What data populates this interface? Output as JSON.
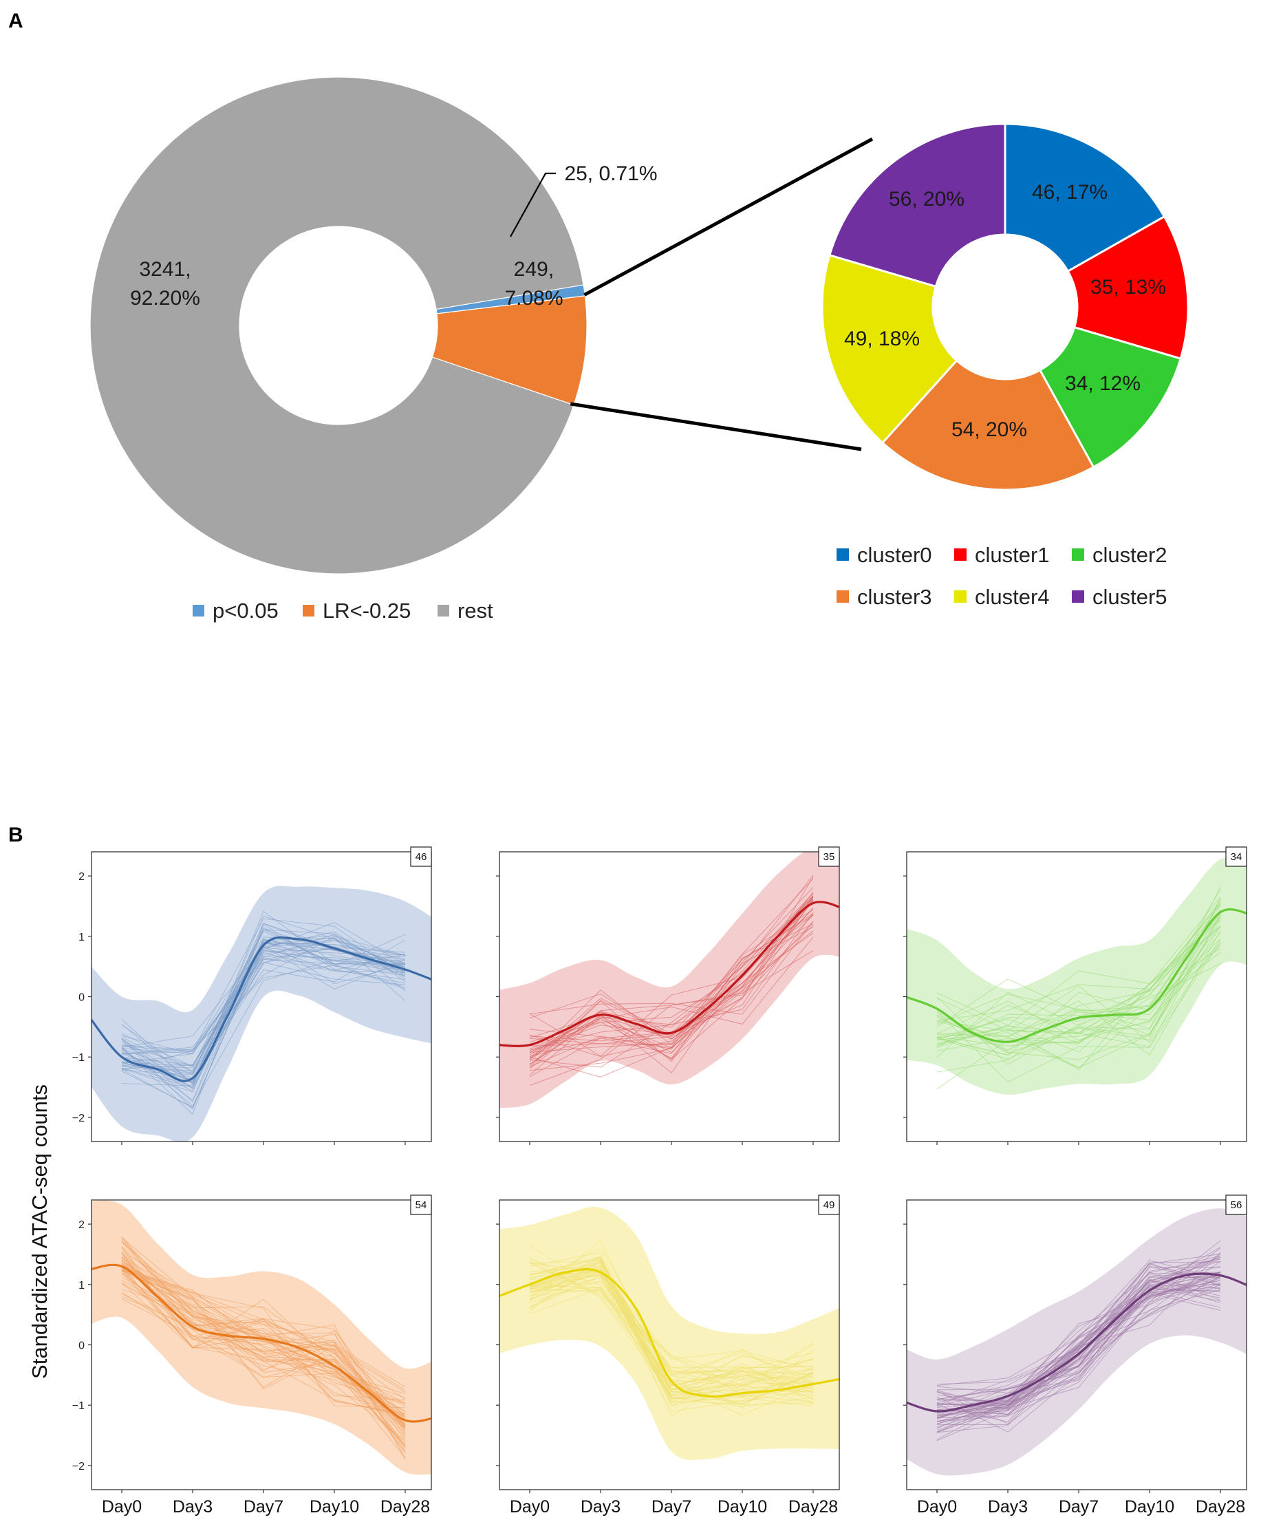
{
  "figure": {
    "panel_a_label": "A",
    "panel_b_label": "B"
  },
  "chart_data": [
    {
      "type": "pie",
      "variant": "donut",
      "title": "",
      "slices": [
        {
          "name": "p<0.05",
          "value": 25,
          "percent": 0.71,
          "label": "25, 0.71%",
          "color": "#5b9bd5"
        },
        {
          "name": "LR<-0.25",
          "value": 249,
          "percent": 7.08,
          "label_line1": "249,",
          "label_line2": "7.08%",
          "color": "#ed7d31"
        },
        {
          "name": "rest",
          "value": 3241,
          "percent": 92.2,
          "label_line1": "3241,",
          "label_line2": "92.20%",
          "color": "#a5a5a5"
        }
      ],
      "legend": [
        "p<0.05",
        "LR<-0.25",
        "rest"
      ],
      "legend_placement": "bottom"
    },
    {
      "type": "pie",
      "variant": "donut",
      "title": "",
      "slices": [
        {
          "name": "cluster0",
          "value": 46,
          "percent": 17,
          "label": "46, 17%",
          "color": "#0070c0"
        },
        {
          "name": "cluster1",
          "value": 35,
          "percent": 13,
          "label": "35, 13%",
          "color": "#ff0000"
        },
        {
          "name": "cluster2",
          "value": 34,
          "percent": 12,
          "label": "34, 12%",
          "color": "#33cc33"
        },
        {
          "name": "cluster3",
          "value": 54,
          "percent": 20,
          "label": "54, 20%",
          "color": "#ed7d31"
        },
        {
          "name": "cluster4",
          "value": 49,
          "percent": 18,
          "label": "49, 18%",
          "color": "#e6e600"
        },
        {
          "name": "cluster5",
          "value": 56,
          "percent": 20,
          "label": "56, 20%",
          "color": "#7030a0"
        }
      ],
      "legend": [
        "cluster0",
        "cluster1",
        "cluster2",
        "cluster3",
        "cluster4",
        "cluster5"
      ],
      "legend_placement": "bottom"
    },
    {
      "type": "line",
      "title": "",
      "ylabel": "Standardized ATAC-seq counts",
      "categories": [
        "Day0",
        "Day3",
        "Day7",
        "Day10",
        "Day28"
      ],
      "yticks": [
        "2",
        "1",
        "0",
        "−1",
        "−2"
      ],
      "ylim": [
        -2.4,
        2.4
      ],
      "panels": [
        {
          "cluster": "cluster0",
          "count": "46",
          "color": "#3a6aa8",
          "fill": "#c5d4e8",
          "thin": "#7f9ec9",
          "mean": [
            -1.0,
            -1.35,
            0.85,
            0.75,
            0.45
          ],
          "band_width": 1.0,
          "spread": 0.4,
          "trend": [
            [
              -0.45,
              -0.35
            ],
            [
              0,
              -1.0
            ],
            [
              0.5,
              -1.2
            ],
            [
              1,
              -1.35
            ],
            [
              1.5,
              -0.3
            ],
            [
              2,
              0.85
            ],
            [
              2.5,
              0.95
            ],
            [
              3,
              0.8
            ],
            [
              3.5,
              0.62
            ],
            [
              4,
              0.45
            ],
            [
              4.45,
              0.25
            ]
          ]
        },
        {
          "cluster": "cluster1",
          "count": "35",
          "color": "#c0181c",
          "fill": "#f2c4c5",
          "thin": "#d96060",
          "mean": [
            -0.95,
            -0.5,
            -0.6,
            0.3,
            1.5
          ],
          "band_width": 0.9,
          "spread": 0.45,
          "trend": [
            [
              -0.45,
              -0.8
            ],
            [
              0,
              -0.8
            ],
            [
              0.5,
              -0.55
            ],
            [
              1,
              -0.3
            ],
            [
              1.5,
              -0.45
            ],
            [
              2,
              -0.6
            ],
            [
              2.5,
              -0.2
            ],
            [
              3,
              0.35
            ],
            [
              3.5,
              1.0
            ],
            [
              4,
              1.55
            ],
            [
              4.45,
              1.45
            ]
          ]
        },
        {
          "cluster": "cluster2",
          "count": "34",
          "color": "#66cc33",
          "fill": "#d4f0c4",
          "thin": "#99dd77",
          "mean": [
            -0.6,
            -0.55,
            -0.45,
            -0.3,
            1.3
          ],
          "band_width": 1.0,
          "spread": 0.55,
          "trend": [
            [
              -0.45,
              0.0
            ],
            [
              0,
              -0.2
            ],
            [
              0.5,
              -0.6
            ],
            [
              1,
              -0.75
            ],
            [
              1.5,
              -0.55
            ],
            [
              2,
              -0.35
            ],
            [
              2.5,
              -0.3
            ],
            [
              3,
              -0.2
            ],
            [
              3.5,
              0.6
            ],
            [
              4,
              1.4
            ],
            [
              4.45,
              1.35
            ]
          ]
        },
        {
          "cluster": "cluster3",
          "count": "54",
          "color": "#e8781c",
          "fill": "#fad4b4",
          "thin": "#f0a060",
          "mean": [
            1.3,
            0.4,
            0.0,
            -0.3,
            -1.35
          ],
          "band_width": 1.0,
          "spread": 0.45,
          "trend": [
            [
              -0.45,
              1.25
            ],
            [
              0,
              1.3
            ],
            [
              0.5,
              0.8
            ],
            [
              1,
              0.3
            ],
            [
              1.5,
              0.15
            ],
            [
              2,
              0.1
            ],
            [
              2.5,
              -0.05
            ],
            [
              3,
              -0.35
            ],
            [
              3.5,
              -0.8
            ],
            [
              4,
              -1.25
            ],
            [
              4.45,
              -1.2
            ]
          ]
        },
        {
          "cluster": "cluster4",
          "count": "49",
          "color": "#e8d400",
          "fill": "#f9f0b0",
          "thin": "#efe070",
          "mean": [
            1.0,
            1.2,
            -0.75,
            -0.65,
            -0.55
          ],
          "band_width": 1.1,
          "spread": 0.4,
          "trend": [
            [
              -0.45,
              0.8
            ],
            [
              0,
              1.0
            ],
            [
              0.5,
              1.2
            ],
            [
              1,
              1.2
            ],
            [
              1.5,
              0.6
            ],
            [
              2,
              -0.6
            ],
            [
              2.5,
              -0.85
            ],
            [
              3,
              -0.8
            ],
            [
              3.5,
              -0.75
            ],
            [
              4,
              -0.65
            ],
            [
              4.45,
              -0.55
            ]
          ]
        },
        {
          "cluster": "cluster5",
          "count": "56",
          "color": "#6e3c78",
          "fill": "#ddd2e0",
          "thin": "#a07aa8",
          "mean": [
            -1.1,
            -0.9,
            -0.2,
            0.9,
            1.15
          ],
          "band_width": 1.0,
          "spread": 0.35,
          "trend": [
            [
              -0.45,
              -0.95
            ],
            [
              0,
              -1.1
            ],
            [
              0.5,
              -1.0
            ],
            [
              1,
              -0.85
            ],
            [
              1.5,
              -0.55
            ],
            [
              2,
              -0.15
            ],
            [
              2.5,
              0.4
            ],
            [
              3,
              0.9
            ],
            [
              3.5,
              1.15
            ],
            [
              4,
              1.15
            ],
            [
              4.45,
              0.95
            ]
          ]
        }
      ]
    }
  ]
}
